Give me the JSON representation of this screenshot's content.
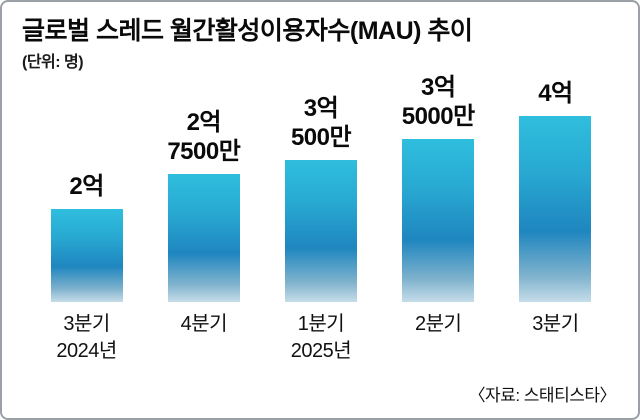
{
  "chart_data": {
    "type": "bar",
    "title": "글로벌 스레드 월간활성이용자수(MAU) 추이",
    "unit_label": "(단위: 명)",
    "source": "〈자료: 스태티스타〉",
    "categories": [
      [
        "3분기",
        "2024년"
      ],
      [
        "4분기"
      ],
      [
        "1분기",
        "2025년"
      ],
      [
        "2분기"
      ],
      [
        "3분기"
      ]
    ],
    "value_labels": [
      [
        "2억"
      ],
      [
        "2억",
        "7500만"
      ],
      [
        "3억",
        "500만"
      ],
      [
        "3억",
        "5000만"
      ],
      [
        "4억"
      ]
    ],
    "values": [
      200000000,
      275000000,
      305000000,
      350000000,
      400000000
    ],
    "ylim": [
      0,
      400000000
    ],
    "legend": "none",
    "grid": false,
    "bar_color_top": "#2fbede",
    "bar_color_mid": "#1f86bf",
    "bar_color_bottom": "#c6dde9"
  }
}
